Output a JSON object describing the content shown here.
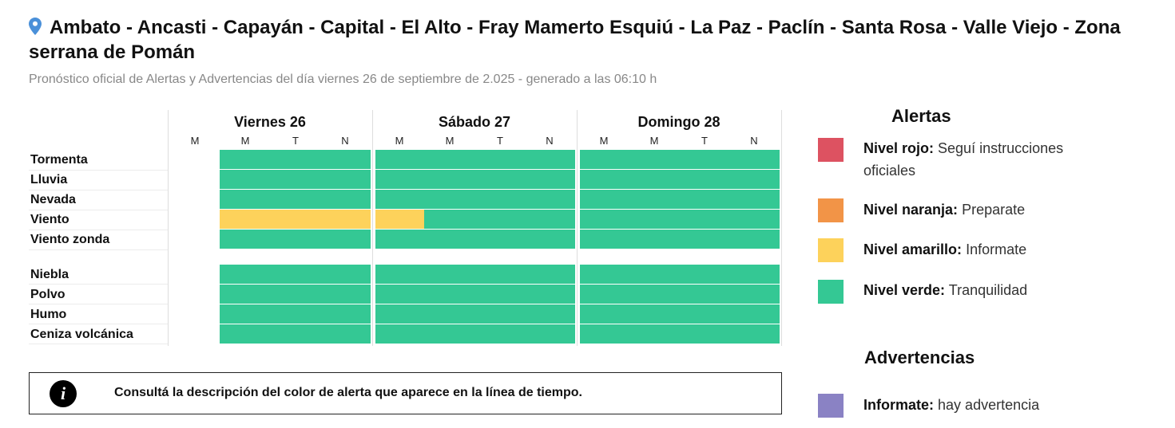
{
  "header": {
    "title": "Ambato - Ancasti - Capayán - Capital - El Alto - Fray Mamerto Esquiú - La Paz - Paclín - Santa Rosa - Valle Viejo - Zona serrana de Pomán",
    "subtitle": "Pronóstico oficial de Alertas y Advertencias del día viernes 26 de septiembre de 2.025 - generado a las 06:10 h"
  },
  "icons": {
    "location": "map-pin-icon",
    "info": "info-icon"
  },
  "colors": {
    "verde": "#34c894",
    "amarillo": "#fdd25b",
    "naranja": "#f29447",
    "rojo": "#dd5261",
    "advertencia": "#8a82c4",
    "pin": "#4a90d9"
  },
  "timeline": {
    "days": [
      {
        "label": "Viernes 26",
        "periods": [
          "M",
          "M",
          "T",
          "N"
        ]
      },
      {
        "label": "Sábado 27",
        "periods": [
          "M",
          "M",
          "T",
          "N"
        ]
      },
      {
        "label": "Domingo 28",
        "periods": [
          "M",
          "M",
          "T",
          "N"
        ]
      }
    ],
    "rows": [
      {
        "label": "Tormenta",
        "levels": [
          "none",
          "verde",
          "verde",
          "verde",
          "verde",
          "verde",
          "verde",
          "verde",
          "verde",
          "verde",
          "verde",
          "verde"
        ]
      },
      {
        "label": "Lluvia",
        "levels": [
          "none",
          "verde",
          "verde",
          "verde",
          "verde",
          "verde",
          "verde",
          "verde",
          "verde",
          "verde",
          "verde",
          "verde"
        ]
      },
      {
        "label": "Nevada",
        "levels": [
          "none",
          "verde",
          "verde",
          "verde",
          "verde",
          "verde",
          "verde",
          "verde",
          "verde",
          "verde",
          "verde",
          "verde"
        ]
      },
      {
        "label": "Viento",
        "levels": [
          "none",
          "amarillo",
          "amarillo",
          "amarillo",
          "amarillo",
          "verde",
          "verde",
          "verde",
          "verde",
          "verde",
          "verde",
          "verde"
        ]
      },
      {
        "label": "Viento zonda",
        "levels": [
          "none",
          "verde",
          "verde",
          "verde",
          "verde",
          "verde",
          "verde",
          "verde",
          "verde",
          "verde",
          "verde",
          "verde"
        ]
      },
      {
        "label": "Niebla",
        "levels": [
          "none",
          "verde",
          "verde",
          "verde",
          "verde",
          "verde",
          "verde",
          "verde",
          "verde",
          "verde",
          "verde",
          "verde"
        ]
      },
      {
        "label": "Polvo",
        "levels": [
          "none",
          "verde",
          "verde",
          "verde",
          "verde",
          "verde",
          "verde",
          "verde",
          "verde",
          "verde",
          "verde",
          "verde"
        ]
      },
      {
        "label": "Humo",
        "levels": [
          "none",
          "verde",
          "verde",
          "verde",
          "verde",
          "verde",
          "verde",
          "verde",
          "verde",
          "verde",
          "verde",
          "verde"
        ]
      },
      {
        "label": "Ceniza volcánica",
        "levels": [
          "none",
          "verde",
          "verde",
          "verde",
          "verde",
          "verde",
          "verde",
          "verde",
          "verde",
          "verde",
          "verde",
          "verde"
        ]
      }
    ]
  },
  "info": {
    "text": "Consultá la descripción del color de alerta que aparece en la línea de tiempo."
  },
  "legend": {
    "alertas_title": "Alertas",
    "alertas": [
      {
        "level": "rojo",
        "name": "Nivel rojo:",
        "desc": "Seguí instrucciones oficiales"
      },
      {
        "level": "naranja",
        "name": "Nivel naranja:",
        "desc": "Preparate"
      },
      {
        "level": "amarillo",
        "name": "Nivel amarillo:",
        "desc": "Informate"
      },
      {
        "level": "verde",
        "name": "Nivel verde:",
        "desc": "Tranquilidad"
      }
    ],
    "advertencias_title": "Advertencias",
    "advertencias": [
      {
        "level": "advertencia",
        "name": "Informate:",
        "desc": "hay advertencia"
      }
    ]
  }
}
